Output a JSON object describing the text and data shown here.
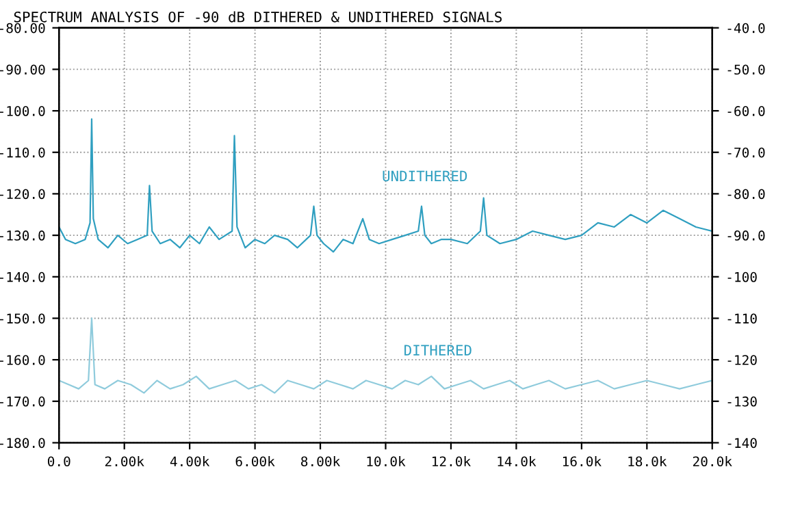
{
  "chart_data": {
    "type": "line",
    "title": "SPECTRUM ANALYSIS OF -90 dB DITHERED & UNDITHERED SIGNALS",
    "series": [
      {
        "color": "#2f9fc0",
        "x": [
          0,
          200,
          500,
          800,
          950,
          1000,
          1050,
          1200,
          1500,
          1800,
          2100,
          2400,
          2700,
          2770,
          2850,
          3100,
          3400,
          3700,
          4000,
          4300,
          4600,
          4900,
          5300,
          5370,
          5450,
          5700,
          6000,
          6300,
          6600,
          7000,
          7300,
          7700,
          7800,
          7900,
          8100,
          8400,
          8700,
          9000,
          9300,
          9500,
          9800,
          10200,
          10600,
          11000,
          11100,
          11200,
          11400,
          11700,
          12000,
          12500,
          12900,
          13000,
          13100,
          13500,
          14000,
          14500,
          15000,
          15500,
          16000,
          16500,
          17000,
          17500,
          18000,
          18500,
          19000,
          19500,
          20000
        ],
        "values": [
          -128,
          -131,
          -132,
          -131,
          -127,
          -102,
          -126,
          -131,
          -133,
          -130,
          -132,
          -131,
          -130,
          -118,
          -129,
          -132,
          -131,
          -133,
          -130,
          -132,
          -128,
          -131,
          -129,
          -106,
          -128,
          -133,
          -131,
          -132,
          -130,
          -131,
          -133,
          -130,
          -123,
          -130,
          -132,
          -134,
          -131,
          -132,
          -126,
          -131,
          -132,
          -131,
          -130,
          -129,
          -123,
          -130,
          -132,
          -131,
          -131,
          -132,
          -129,
          -121,
          -130,
          -132,
          -131,
          -129,
          -130,
          -131,
          -130,
          -127,
          -128,
          -125,
          -127,
          -124,
          -126,
          -128,
          -129
        ]
      },
      {
        "color": "#8fcbdc",
        "x": [
          0,
          300,
          600,
          900,
          1000,
          1100,
          1400,
          1800,
          2200,
          2600,
          3000,
          3400,
          3800,
          4200,
          4600,
          5000,
          5400,
          5800,
          6200,
          6600,
          7000,
          7400,
          7800,
          8200,
          8600,
          9000,
          9400,
          9800,
          10200,
          10600,
          11000,
          11400,
          11800,
          12200,
          12600,
          13000,
          13400,
          13800,
          14200,
          14600,
          15000,
          15500,
          16000,
          16500,
          17000,
          17500,
          18000,
          18500,
          19000,
          19500,
          20000
        ],
        "values": [
          -165,
          -166,
          -167,
          -165,
          -150,
          -166,
          -167,
          -165,
          -166,
          -168,
          -165,
          -167,
          -166,
          -164,
          -167,
          -166,
          -165,
          -167,
          -166,
          -168,
          -165,
          -166,
          -167,
          -165,
          -166,
          -167,
          -165,
          -166,
          -167,
          -165,
          -166,
          -164,
          -167,
          -166,
          -165,
          -167,
          -166,
          -165,
          -167,
          -166,
          -165,
          -167,
          -166,
          -165,
          -167,
          -166,
          -165,
          -166,
          -167,
          -166,
          -165
        ]
      }
    ],
    "xlim": [
      0,
      20000
    ],
    "ylim": [
      -180,
      -80
    ],
    "xticks": [
      {
        "value": 0,
        "label": "0.0"
      },
      {
        "value": 2000,
        "label": "2.00k"
      },
      {
        "value": 4000,
        "label": "4.00k"
      },
      {
        "value": 6000,
        "label": "6.00k"
      },
      {
        "value": 8000,
        "label": "8.00k"
      },
      {
        "value": 10000,
        "label": "10.0k"
      },
      {
        "value": 12000,
        "label": "12.0k"
      },
      {
        "value": 14000,
        "label": "14.0k"
      },
      {
        "value": 16000,
        "label": "16.0k"
      },
      {
        "value": 18000,
        "label": "18.0k"
      },
      {
        "value": 20000,
        "label": "20.0k"
      }
    ],
    "yticks": [
      {
        "value": -80,
        "label": "-80.00"
      },
      {
        "value": -90,
        "label": "-90.00"
      },
      {
        "value": -100,
        "label": "-100.0"
      },
      {
        "value": -110,
        "label": "-110.0"
      },
      {
        "value": -120,
        "label": "-120.0"
      },
      {
        "value": -130,
        "label": "-130.0"
      },
      {
        "value": -140,
        "label": "-140.0"
      },
      {
        "value": -150,
        "label": "-150.0"
      },
      {
        "value": -160,
        "label": "-160.0"
      },
      {
        "value": -170,
        "label": "-170.0"
      },
      {
        "value": -180,
        "label": "-180.0"
      }
    ],
    "y2lim": [
      -140,
      -40
    ],
    "y2ticks": [
      {
        "value": -40,
        "label": "-40.0"
      },
      {
        "value": -50,
        "label": "-50.0"
      },
      {
        "value": -60,
        "label": "-60.0"
      },
      {
        "value": -70,
        "label": "-70.0"
      },
      {
        "value": -80,
        "label": "-80.0"
      },
      {
        "value": -90,
        "label": "-90.0"
      },
      -100,
      -110,
      -120,
      -130,
      -140
    ],
    "annotations": [
      "UNDITHERED",
      "DITHERED"
    ],
    "grid": true,
    "line_style": "solid"
  }
}
